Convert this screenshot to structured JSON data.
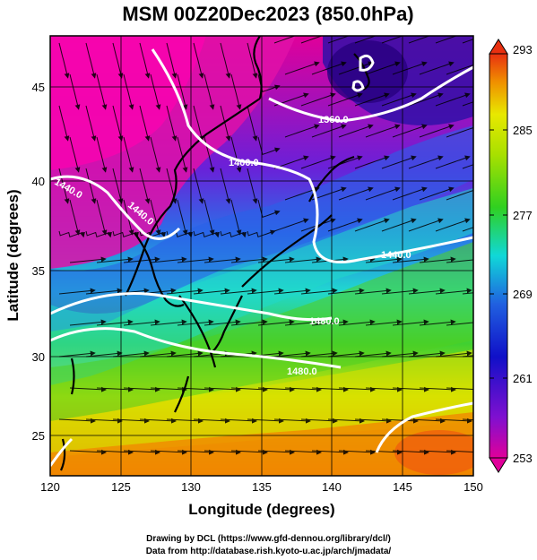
{
  "title": "MSM 00Z20Dec2023 (850.0hPa)",
  "xlabel": "Longitude (degrees)",
  "ylabel": "Latitude  (degrees)",
  "x_ticks": [
    "120",
    "125",
    "130",
    "135",
    "140",
    "145",
    "150"
  ],
  "y_ticks": [
    "25",
    "30",
    "35",
    "40",
    "45"
  ],
  "colorbar_ticks": [
    "293",
    "285",
    "277",
    "269",
    "261",
    "253"
  ],
  "contour_labels": [
    "1360.0",
    "1400.0",
    "1440.0",
    "1440.0",
    "1440.0",
    "1480.0",
    "1480.0"
  ],
  "credits": {
    "line1": "Drawing by DCL (https://www.gfd-dennou.org/library/dcl/)",
    "line2": "Data from http://database.rish.kyoto-u.ac.jp/arch/jmadata/"
  },
  "colors": {
    "min": "#e0009a",
    "violet": "#8010d0",
    "blue": "#1010c8",
    "mid_blue": "#2060e0",
    "cyan": "#10d8d8",
    "green": "#30d020",
    "yellow": "#e8e800",
    "orange": "#f09000",
    "max": "#e83010",
    "contour": "#ffffff",
    "coast": "#000000"
  },
  "map_data": {
    "type": "meteorological-map",
    "lon_range": [
      120,
      150
    ],
    "lat_range": [
      22.4,
      47.6
    ],
    "variable_colorbar_range": [
      253,
      293
    ],
    "colorbar_ticks": [
      293,
      285,
      277,
      269,
      261,
      253
    ],
    "contour_levels_labeled": [
      1360.0,
      1400.0,
      1440.0,
      1480.0
    ],
    "colorbar_extends": "both"
  }
}
